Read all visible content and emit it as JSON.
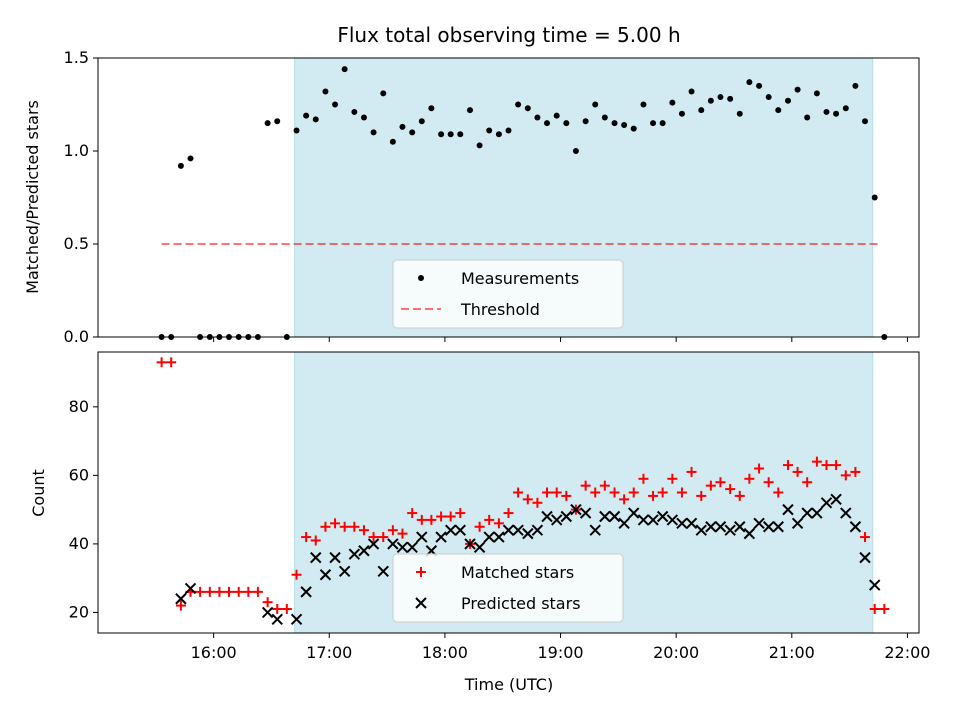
{
  "chart_data": [
    {
      "type": "scatter",
      "title": "Flux total observing time = 5.00 h",
      "xlabel": "",
      "ylabel": "Matched/Predicted stars",
      "xlim": [
        15.0,
        22.1
      ],
      "ylim": [
        0.0,
        1.5
      ],
      "yticks": [
        0.0,
        0.5,
        1.0,
        1.5
      ],
      "ytick_labels": [
        "0.0",
        "0.5",
        "1.0",
        "1.5"
      ],
      "shaded_span": [
        16.7,
        21.7
      ],
      "shade_color": "#add8e6",
      "threshold": {
        "name": "Threshold",
        "y": 0.5,
        "x": [
          15.55,
          21.75
        ],
        "color": "#ff0000"
      },
      "legend": [
        "Measurements",
        "Threshold"
      ],
      "legend_position": "lower-center",
      "series": [
        {
          "name": "Measurements",
          "marker": "dot",
          "color": "#000000",
          "x": [
            15.55,
            15.633,
            15.717,
            15.8,
            15.883,
            15.967,
            16.05,
            16.133,
            16.217,
            16.3,
            16.383,
            16.467,
            16.55,
            16.633,
            16.717,
            16.8,
            16.883,
            16.967,
            17.05,
            17.133,
            17.217,
            17.3,
            17.383,
            17.467,
            17.55,
            17.633,
            17.717,
            17.8,
            17.883,
            17.967,
            18.05,
            18.133,
            18.217,
            18.3,
            18.383,
            18.467,
            18.55,
            18.633,
            18.717,
            18.8,
            18.883,
            18.967,
            19.05,
            19.133,
            19.217,
            19.3,
            19.383,
            19.467,
            19.55,
            19.633,
            19.717,
            19.8,
            19.883,
            19.967,
            20.05,
            20.133,
            20.217,
            20.3,
            20.383,
            20.467,
            20.55,
            20.633,
            20.717,
            20.8,
            20.883,
            20.967,
            21.05,
            21.133,
            21.217,
            21.3,
            21.383,
            21.467,
            21.55,
            21.633,
            21.717,
            21.8
          ],
          "y": [
            0.0,
            0.0,
            0.92,
            0.96,
            0.0,
            0.0,
            0.0,
            0.0,
            0.0,
            0.0,
            0.0,
            1.15,
            1.16,
            0.0,
            1.11,
            1.19,
            1.17,
            1.32,
            1.25,
            1.44,
            1.21,
            1.18,
            1.1,
            1.31,
            1.05,
            1.13,
            1.1,
            1.16,
            1.23,
            1.09,
            1.09,
            1.09,
            1.22,
            1.03,
            1.11,
            1.09,
            1.11,
            1.25,
            1.23,
            1.18,
            1.15,
            1.19,
            1.15,
            1.0,
            1.16,
            1.25,
            1.18,
            1.15,
            1.14,
            1.12,
            1.25,
            1.15,
            1.15,
            1.26,
            1.2,
            1.32,
            1.22,
            1.27,
            1.29,
            1.28,
            1.2,
            1.37,
            1.35,
            1.29,
            1.22,
            1.27,
            1.33,
            1.18,
            1.31,
            1.21,
            1.2,
            1.23,
            1.35,
            1.16,
            0.75,
            0.0
          ]
        }
      ]
    },
    {
      "type": "scatter",
      "title": "",
      "xlabel": "Time (UTC)",
      "ylabel": "Count",
      "xlim": [
        15.0,
        22.1
      ],
      "ylim": [
        14,
        96
      ],
      "yticks": [
        20,
        40,
        60,
        80
      ],
      "ytick_labels": [
        "20",
        "40",
        "60",
        "80"
      ],
      "xticks": [
        16,
        17,
        18,
        19,
        20,
        21,
        22
      ],
      "xtick_labels": [
        "16:00",
        "17:00",
        "18:00",
        "19:00",
        "20:00",
        "21:00",
        "22:00"
      ],
      "shaded_span": [
        16.7,
        21.7
      ],
      "shade_color": "#add8e6",
      "legend": [
        "Matched stars",
        "Predicted stars"
      ],
      "legend_position": "lower-center",
      "series": [
        {
          "name": "Matched stars",
          "marker": "plus",
          "color": "#ff0000",
          "x": [
            15.55,
            15.633,
            15.717,
            15.8,
            15.883,
            15.967,
            16.05,
            16.133,
            16.217,
            16.3,
            16.383,
            16.467,
            16.55,
            16.633,
            16.717,
            16.8,
            16.883,
            16.967,
            17.05,
            17.133,
            17.217,
            17.3,
            17.383,
            17.467,
            17.55,
            17.633,
            17.717,
            17.8,
            17.883,
            17.967,
            18.05,
            18.133,
            18.217,
            18.3,
            18.383,
            18.467,
            18.55,
            18.633,
            18.717,
            18.8,
            18.883,
            18.967,
            19.05,
            19.133,
            19.217,
            19.3,
            19.383,
            19.467,
            19.55,
            19.633,
            19.717,
            19.8,
            19.883,
            19.967,
            20.05,
            20.133,
            20.217,
            20.3,
            20.383,
            20.467,
            20.55,
            20.633,
            20.717,
            20.8,
            20.883,
            20.967,
            21.05,
            21.133,
            21.217,
            21.3,
            21.383,
            21.467,
            21.55,
            21.633,
            21.717,
            21.8
          ],
          "y": [
            93,
            93,
            22,
            26,
            26,
            26,
            26,
            26,
            26,
            26,
            26,
            23,
            21,
            21,
            31,
            42,
            41,
            45,
            46,
            45,
            45,
            44,
            42,
            42,
            44,
            43,
            49,
            47,
            47,
            48,
            48,
            49,
            40,
            45,
            47,
            46,
            49,
            55,
            53,
            52,
            55,
            55,
            54,
            50,
            57,
            55,
            57,
            55,
            53,
            55,
            59,
            54,
            55,
            59,
            55,
            61,
            54,
            57,
            58,
            56,
            54,
            59,
            62,
            58,
            55,
            63,
            61,
            58,
            64,
            63,
            63,
            60,
            61,
            42,
            21,
            21
          ]
        },
        {
          "name": "Predicted stars",
          "marker": "x",
          "color": "#000000",
          "x": [
            15.55,
            15.633,
            15.717,
            15.8,
            15.883,
            15.967,
            16.05,
            16.133,
            16.217,
            16.3,
            16.383,
            16.467,
            16.55,
            16.633,
            16.717,
            16.8,
            16.883,
            16.967,
            17.05,
            17.133,
            17.217,
            17.3,
            17.383,
            17.467,
            17.55,
            17.633,
            17.717,
            17.8,
            17.883,
            17.967,
            18.05,
            18.133,
            18.217,
            18.3,
            18.383,
            18.467,
            18.55,
            18.633,
            18.717,
            18.8,
            18.883,
            18.967,
            19.05,
            19.133,
            19.217,
            19.3,
            19.383,
            19.467,
            19.55,
            19.633,
            19.717,
            19.8,
            19.883,
            19.967,
            20.05,
            20.133,
            20.217,
            20.3,
            20.383,
            20.467,
            20.55,
            20.633,
            20.717,
            20.8,
            20.883,
            20.967,
            21.05,
            21.133,
            21.217,
            21.3,
            21.383,
            21.467,
            21.55,
            21.633,
            21.717,
            21.8
          ],
          "y": [
            null,
            null,
            24,
            27,
            null,
            null,
            null,
            null,
            null,
            null,
            null,
            20,
            18,
            null,
            18,
            26,
            36,
            31,
            36,
            32,
            37,
            38,
            40,
            32,
            40,
            39,
            39,
            42,
            38,
            42,
            44,
            44,
            40,
            39,
            42,
            42,
            44,
            44,
            43,
            44,
            48,
            47,
            48,
            50,
            49,
            44,
            48,
            48,
            46,
            49,
            47,
            47,
            48,
            47,
            46,
            46,
            44,
            45,
            45,
            44,
            45,
            43,
            46,
            45,
            45,
            50,
            46,
            49,
            49,
            52,
            53,
            49,
            45,
            36,
            28,
            null
          ]
        }
      ]
    }
  ]
}
